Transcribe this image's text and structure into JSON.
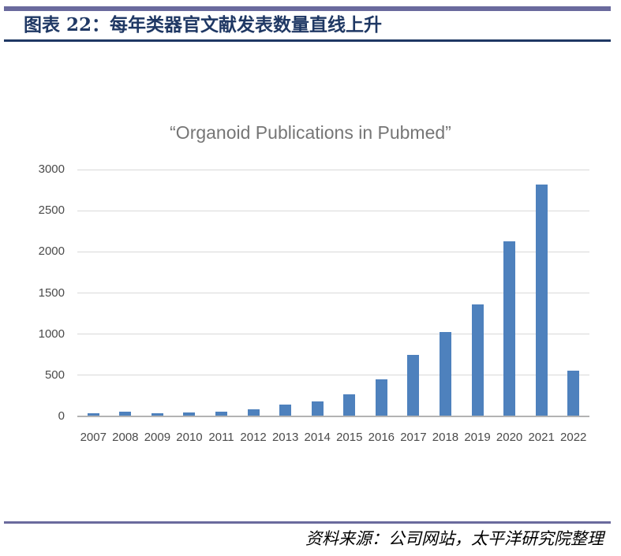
{
  "header": {
    "title": "图表 22：每年类器官文献发表数量直线上升"
  },
  "chart_data": {
    "type": "bar",
    "title": "“Organoid Publications in Pubmed”",
    "categories": [
      "2007",
      "2008",
      "2009",
      "2010",
      "2011",
      "2012",
      "2013",
      "2014",
      "2015",
      "2016",
      "2017",
      "2018",
      "2019",
      "2020",
      "2021",
      "2022"
    ],
    "values": [
      40,
      55,
      38,
      48,
      62,
      85,
      148,
      185,
      270,
      455,
      745,
      1030,
      1360,
      2130,
      2820,
      560
    ],
    "xlabel": "",
    "ylabel": "",
    "ylim": [
      0,
      3000
    ],
    "yticks": [
      0,
      500,
      1000,
      1500,
      2000,
      2500,
      3000
    ],
    "grid": true,
    "legend": "none",
    "bar_color": "#4E81BD",
    "gridline_color": "#D9D9D9",
    "axis_line_color": "#B3B3B3",
    "tick_label_color": "#4A4A4A",
    "title_color": "#767676"
  },
  "footer": {
    "source": "资料来源：公司网站，太平洋研究院整理"
  },
  "theme": {
    "top_bar_color": "#6A6A9D",
    "header_title_color": "#1F3864",
    "header_rule_color": "#1F3864",
    "footer_rule_color": "#6A6A9D"
  }
}
